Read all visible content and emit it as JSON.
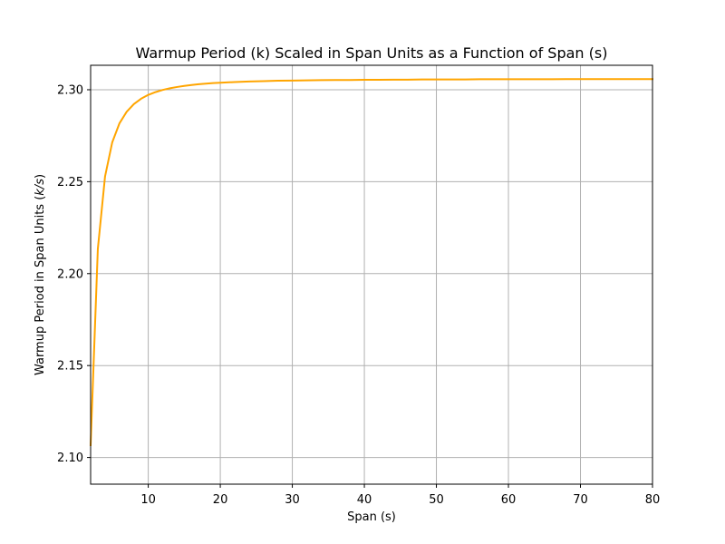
{
  "chart_data": {
    "type": "line",
    "title": "Warmup Period (k) Scaled in Span Units as a Function of Span (s)",
    "xlabel": "Span (s)",
    "ylabel": "Warmup Period in Span Units (k/s)",
    "xlim": [
      2,
      80
    ],
    "ylim": [
      2.0855,
      2.3133
    ],
    "grid": true,
    "xticks": [
      10,
      20,
      30,
      40,
      50,
      60,
      70,
      80
    ],
    "xtick_labels": [
      "10",
      "20",
      "30",
      "40",
      "50",
      "60",
      "70",
      "80"
    ],
    "yticks": [
      2.1,
      2.15,
      2.2,
      2.25,
      2.3
    ],
    "ytick_labels": [
      "2.10",
      "2.15",
      "2.20",
      "2.25",
      "2.30"
    ],
    "line_color": "#FFA500",
    "series": [
      {
        "x": [
          2,
          3,
          4,
          5,
          6,
          7,
          8,
          9,
          10,
          11,
          12,
          13,
          14,
          15,
          16,
          17,
          18,
          19,
          20,
          22,
          24,
          26,
          28,
          30,
          32,
          34,
          36,
          38,
          40,
          42,
          44,
          46,
          48,
          50,
          52,
          54,
          56,
          58,
          60,
          62,
          64,
          66,
          68,
          70,
          72,
          74,
          76,
          78,
          80
        ],
        "values": [
          2.1067,
          2.2134,
          2.2528,
          2.2714,
          2.2817,
          2.288,
          2.2922,
          2.2951,
          2.2972,
          2.2987,
          2.2999,
          2.3008,
          2.3015,
          2.3021,
          2.3026,
          2.303,
          2.3033,
          2.3036,
          2.3038,
          2.3042,
          2.3045,
          2.3047,
          2.3049,
          2.305,
          2.3051,
          2.3052,
          2.3053,
          2.3053,
          2.3054,
          2.3054,
          2.3055,
          2.3055,
          2.3056,
          2.3056,
          2.3056,
          2.3056,
          2.3057,
          2.3057,
          2.3057,
          2.3057,
          2.3057,
          2.3057,
          2.3058,
          2.3058,
          2.3058,
          2.3058,
          2.3058,
          2.3058,
          2.3058
        ]
      }
    ]
  }
}
